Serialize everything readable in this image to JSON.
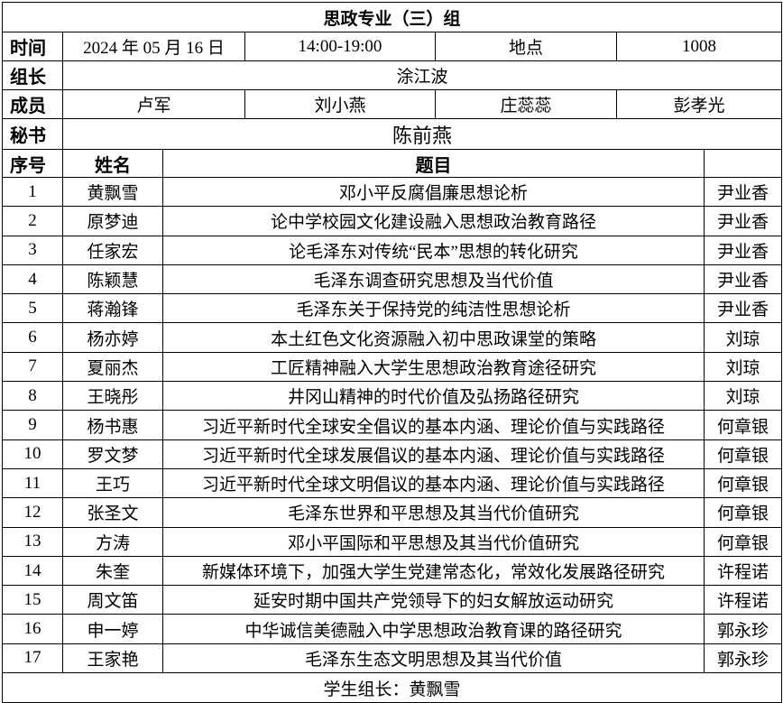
{
  "title": "思政专业（三）组",
  "info": {
    "time_label": "时间",
    "date": "2024 年 05 月 16 日",
    "time_range": "14:00-19:00",
    "location_label": "地点",
    "location": "1008",
    "leader_label": "组长",
    "leader": "涂江波",
    "members_label": "成员",
    "members": [
      "卢军",
      "刘小燕",
      "庄蕊蕊",
      "彭孝光"
    ],
    "secretary_label": "秘书",
    "secretary": "陈前燕"
  },
  "table": {
    "headers": {
      "seq": "序号",
      "name": "姓名",
      "topic": "题目",
      "advisor": ""
    },
    "rows": [
      {
        "seq": "1",
        "name": "黄飘雪",
        "topic": "邓小平反腐倡廉思想论析",
        "advisor": "尹业香"
      },
      {
        "seq": "2",
        "name": "原梦迪",
        "topic": "论中学校园文化建设融入思想政治教育路径",
        "advisor": "尹业香"
      },
      {
        "seq": "3",
        "name": "任家宏",
        "topic": "论毛泽东对传统“民本”思想的转化研究",
        "advisor": "尹业香"
      },
      {
        "seq": "4",
        "name": "陈颖慧",
        "topic": "毛泽东调查研究思想及当代价值",
        "advisor": "尹业香"
      },
      {
        "seq": "5",
        "name": "蒋瀚锋",
        "topic": "毛泽东关于保持党的纯洁性思想论析",
        "advisor": "尹业香"
      },
      {
        "seq": "6",
        "name": "杨亦婷",
        "topic": "本土红色文化资源融入初中思政课堂的策略",
        "advisor": "刘琼"
      },
      {
        "seq": "7",
        "name": "夏丽杰",
        "topic": "工匠精神融入大学生思想政治教育途径研究",
        "advisor": "刘琼"
      },
      {
        "seq": "8",
        "name": "王晓彤",
        "topic": "井冈山精神的时代价值及弘扬路径研究",
        "advisor": "刘琼"
      },
      {
        "seq": "9",
        "name": "杨书惠",
        "topic": "习近平新时代全球安全倡议的基本内涵、理论价值与实践路径",
        "advisor": "何章银"
      },
      {
        "seq": "10",
        "name": "罗文梦",
        "topic": "习近平新时代全球发展倡议的基本内涵、理论价值与实践路径",
        "advisor": "何章银"
      },
      {
        "seq": "11",
        "name": "王巧",
        "topic": "习近平新时代全球文明倡议的基本内涵、理论价值与实践路径",
        "advisor": "何章银"
      },
      {
        "seq": "12",
        "name": "张圣文",
        "topic": "毛泽东世界和平思想及其当代价值研究",
        "advisor": "何章银"
      },
      {
        "seq": "13",
        "name": "方涛",
        "topic": "邓小平国际和平思想及其当代价值研究",
        "advisor": "何章银"
      },
      {
        "seq": "14",
        "name": "朱奎",
        "topic": "新媒体环境下，加强大学生党建常态化，常效化发展路径研究",
        "advisor": "许程诺"
      },
      {
        "seq": "15",
        "name": "周文笛",
        "topic": "延安时期中国共产党领导下的妇女解放运动研究",
        "advisor": "许程诺"
      },
      {
        "seq": "16",
        "name": "申一婷",
        "topic": "中华诚信美德融入中学思想政治教育课的路径研究",
        "advisor": "郭永珍"
      },
      {
        "seq": "17",
        "name": "王家艳",
        "topic": "毛泽东生态文明思想及其当代价值",
        "advisor": "郭永珍"
      }
    ]
  },
  "footer": "学生组长：黄飘雪"
}
